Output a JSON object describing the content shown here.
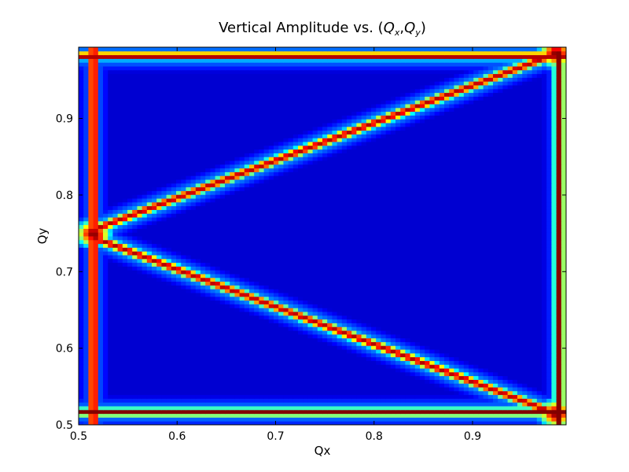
{
  "chart_data": {
    "type": "heatmap",
    "title": "Vertical Amplitude vs. (Q_x, Q_y)",
    "title_parts": {
      "prefix": "Vertical Amplitude vs. (",
      "qx_main": "Q",
      "qx_sub": "x",
      "sep": ",",
      "qy_main": "Q",
      "qy_sub": "y",
      "suffix": ")"
    },
    "xlabel": "Qx",
    "ylabel": "Qy",
    "xlim": [
      0.5,
      0.995
    ],
    "ylim": [
      0.5,
      0.993
    ],
    "xticks": [
      0.5,
      0.6,
      0.7,
      0.8,
      0.9
    ],
    "yticks": [
      0.5,
      0.6,
      0.7,
      0.8,
      0.9
    ],
    "xtick_labels": [
      "0.5",
      "0.6",
      "0.7",
      "0.8",
      "0.9"
    ],
    "ytick_labels": [
      "0.5",
      "0.6",
      "0.7",
      "0.8",
      "0.9"
    ],
    "grid": false,
    "colormap": "jet",
    "grid_resolution": [
      100,
      100
    ],
    "features": [
      {
        "kind": "vertical_band",
        "qx": 0.515,
        "width": 0.004,
        "intensity": 1.0
      },
      {
        "kind": "vertical_band",
        "qx": 0.988,
        "width": 0.004,
        "intensity": 1.0,
        "qy_range": [
          0.5,
          0.99
        ]
      },
      {
        "kind": "horizontal_band",
        "qy": 0.982,
        "width": 0.004,
        "intensity": 1.0
      },
      {
        "kind": "horizontal_band",
        "qy": 0.517,
        "width": 0.004,
        "intensity": 1.0
      },
      {
        "kind": "diagonal_line",
        "from": [
          0.515,
          0.755
        ],
        "to": [
          0.985,
          0.985
        ],
        "intensity": 0.95
      },
      {
        "kind": "diagonal_line",
        "from": [
          0.515,
          0.745
        ],
        "to": [
          0.985,
          0.515
        ],
        "intensity": 0.95
      },
      {
        "kind": "hotspot",
        "qx": 0.515,
        "qy": 0.75,
        "intensity": 1.0
      },
      {
        "kind": "hotspot",
        "qx": 0.985,
        "qy": 0.985,
        "intensity": 1.0
      },
      {
        "kind": "hotspot",
        "qx": 0.985,
        "qy": 0.515,
        "intensity": 1.0
      }
    ]
  }
}
